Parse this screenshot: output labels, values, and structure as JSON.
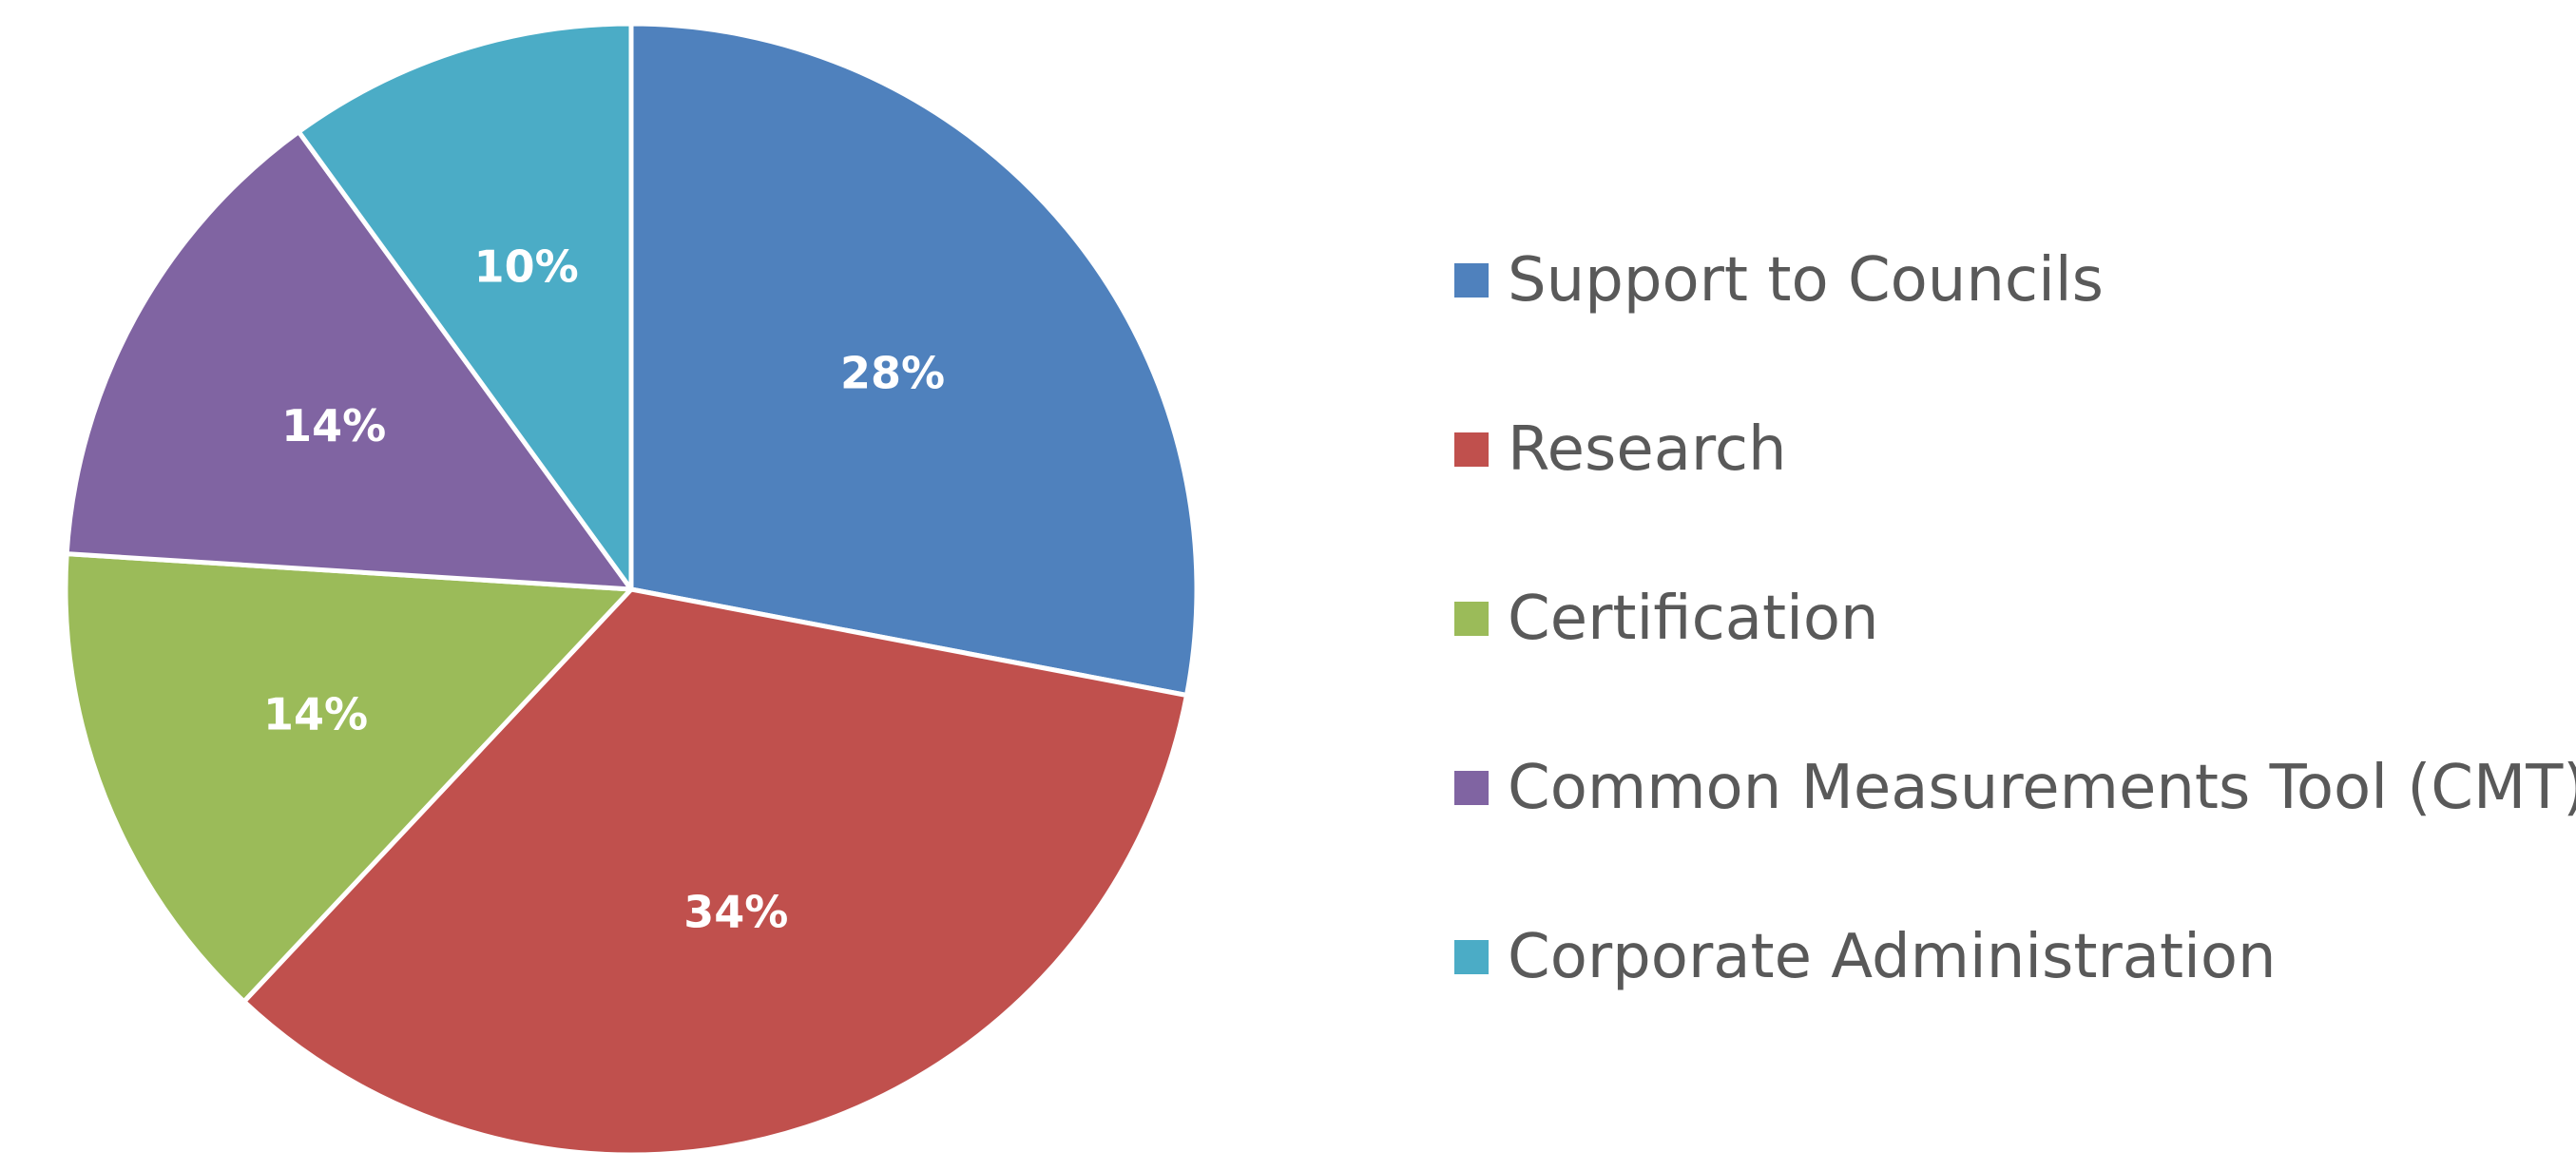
{
  "chart_data": {
    "type": "pie",
    "title": "",
    "slices": [
      {
        "name": "Support to Councils",
        "value": 28,
        "label": "28%",
        "color": "#4F81BD"
      },
      {
        "name": "Research",
        "value": 34,
        "label": "34%",
        "color": "#C0504D"
      },
      {
        "name": "Certification",
        "value": 14,
        "label": "14%",
        "color": "#9BBB59"
      },
      {
        "name": "Common Measurements Tool (CMT)",
        "value": 14,
        "label": "14%",
        "color": "#8064A2"
      },
      {
        "name": "Corporate Administration",
        "value": 10,
        "label": "10%",
        "color": "#4BACC6"
      }
    ],
    "start_angle": "12 o'clock",
    "direction": "clockwise",
    "legend_position": "right",
    "data_labels": "percent"
  }
}
